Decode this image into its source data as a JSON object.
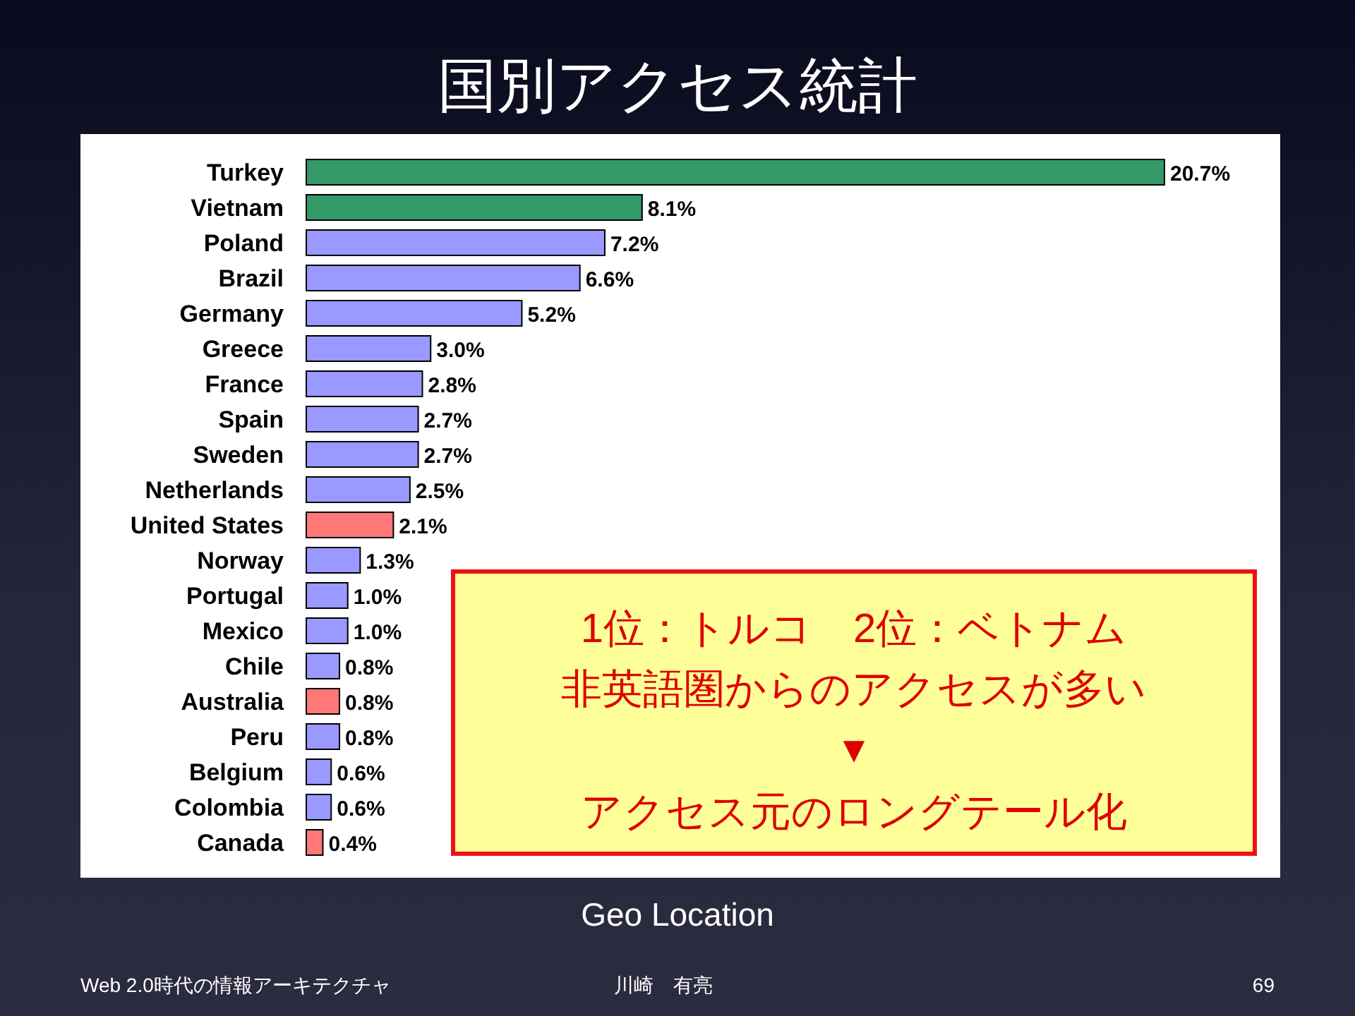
{
  "chart_data": {
    "type": "bar",
    "orientation": "horizontal",
    "title": "国別アクセス統計",
    "categories": [
      "Turkey",
      "Vietnam",
      "Poland",
      "Brazil",
      "Germany",
      "Greece",
      "France",
      "Spain",
      "Sweden",
      "Netherlands",
      "United States",
      "Norway",
      "Portugal",
      "Mexico",
      "Chile",
      "Australia",
      "Peru",
      "Belgium",
      "Colombia",
      "Canada"
    ],
    "values": [
      20.7,
      8.1,
      7.2,
      6.6,
      5.2,
      3.0,
      2.8,
      2.7,
      2.7,
      2.5,
      2.1,
      1.3,
      1.0,
      1.0,
      0.8,
      0.8,
      0.8,
      0.6,
      0.6,
      0.4
    ],
    "value_labels": [
      "20.7%",
      "8.1%",
      "7.2%",
      "6.6%",
      "5.2%",
      "3.0%",
      "2.8%",
      "2.7%",
      "2.7%",
      "2.5%",
      "2.1%",
      "1.3%",
      "1.0%",
      "1.0%",
      "0.8%",
      "0.8%",
      "0.8%",
      "0.6%",
      "0.6%",
      "0.4%"
    ],
    "colors": [
      "#339966",
      "#339966",
      "#9999ff",
      "#9999ff",
      "#9999ff",
      "#9999ff",
      "#9999ff",
      "#9999ff",
      "#9999ff",
      "#9999ff",
      "#ff7777",
      "#9999ff",
      "#9999ff",
      "#9999ff",
      "#9999ff",
      "#ff7777",
      "#9999ff",
      "#9999ff",
      "#9999ff",
      "#ff7777"
    ],
    "annotations": [
      "1位：トルコ　2位：ベトナム",
      "非英語圏からのアクセスが多い",
      "▼",
      "アクセス元のロングテール化",
      "Geo Location",
      "Web 2.0時代の情報アーキテクチャ",
      "川崎　有亮",
      "69"
    ],
    "legend": false
  }
}
